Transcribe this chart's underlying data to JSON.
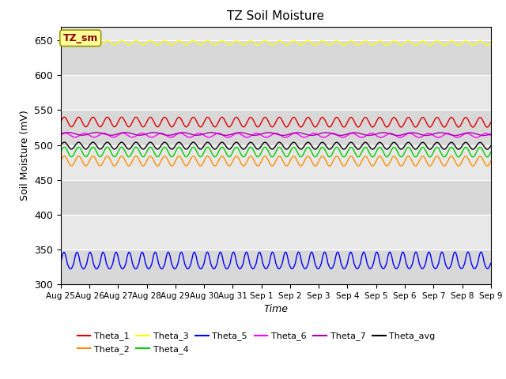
{
  "title": "TZ Soil Moisture",
  "xlabel": "Time",
  "ylabel": "Soil Moisture (mV)",
  "ylim": [
    300,
    670
  ],
  "yticks": [
    300,
    350,
    400,
    450,
    500,
    550,
    600,
    650
  ],
  "background_color": "#e8e8e8",
  "num_points": 1500,
  "xtick_labels": [
    "Aug 25",
    "Aug 26",
    "Aug 27",
    "Aug 28",
    "Aug 29",
    "Aug 30",
    "Aug 31",
    "Sep 1",
    "Sep 2",
    "Sep 3",
    "Sep 4",
    "Sep 5",
    "Sep 6",
    "Sep 7",
    "Sep 8",
    "Sep 9"
  ],
  "series": [
    {
      "name": "Theta_1",
      "color": "#dd0000",
      "base": 533,
      "amplitude": 7,
      "freq": 2.0,
      "trend": -0.5
    },
    {
      "name": "Theta_2",
      "color": "#ff8c00",
      "base": 477,
      "amplitude": 7,
      "freq": 2.0,
      "trend": -0.2
    },
    {
      "name": "Theta_3",
      "color": "#ffff00",
      "base": 647,
      "amplitude": 3,
      "freq": 2.0,
      "trend": -0.8
    },
    {
      "name": "Theta_4",
      "color": "#00cc00",
      "base": 490,
      "amplitude": 7,
      "freq": 2.0,
      "trend": -0.3
    },
    {
      "name": "Theta_5",
      "color": "#0000ff",
      "base": 330,
      "amplitude_hi": 16,
      "amplitude_lo": 8,
      "freq": 2.2,
      "trend": 0.3
    },
    {
      "name": "Theta_6",
      "color": "#ff00ff",
      "base": 514,
      "amplitude": 3,
      "freq": 1.5,
      "trend": -0.4
    },
    {
      "name": "Theta_7",
      "color": "#aa00aa",
      "base": 516,
      "amplitude": 2,
      "freq": 1.0,
      "trend": -0.4
    },
    {
      "name": "Theta_avg",
      "color": "#000000",
      "base": 499,
      "amplitude": 5,
      "freq": 2.0,
      "trend": -0.3
    }
  ],
  "legend_box_label": "TZ_sm",
  "legend_box_color": "#ffff99",
  "legend_box_border": "#999900",
  "legend_box_text_color": "#880000"
}
